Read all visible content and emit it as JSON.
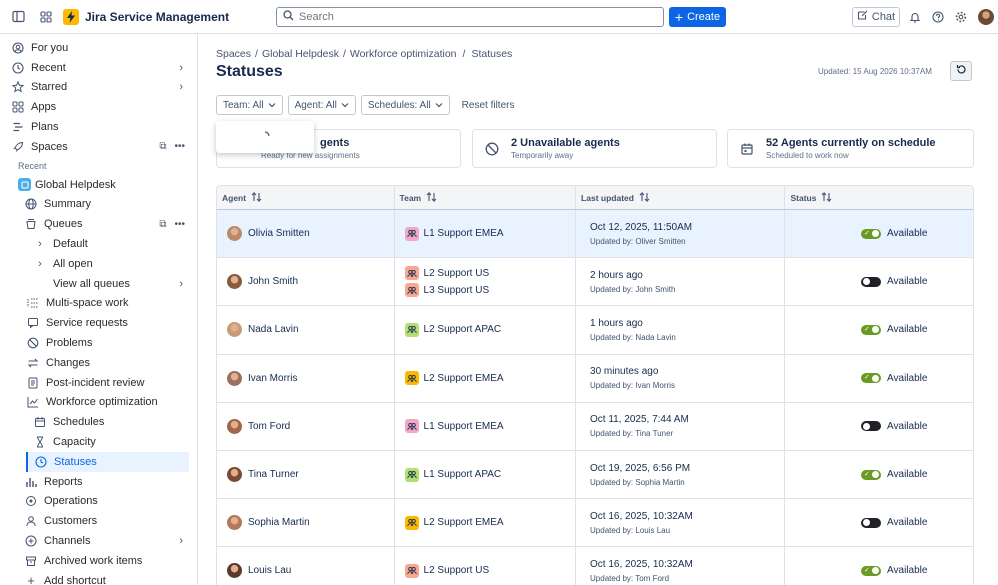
{
  "app": {
    "name": "Jira Service Management"
  },
  "search": {
    "placeholder": "Search"
  },
  "topbar": {
    "create_label": "Create",
    "chat_label": "Chat"
  },
  "sidebar": {
    "for_you": "For you",
    "recent": "Recent",
    "starred": "Starred",
    "apps": "Apps",
    "plans": "Plans",
    "spaces": "Spaces",
    "recent_heading": "Recent",
    "space_name": "Global Helpdesk",
    "summary": "Summary",
    "queues": "Queues",
    "default": "Default",
    "all_open": "All open",
    "view_all_queues": "View all queues",
    "multi_space_work": "Multi-space work",
    "service_requests": "Service requests",
    "problems": "Problems",
    "changes": "Changes",
    "post_incident_review": "Post-incident review",
    "workforce_optimization": "Workforce optimization",
    "schedules": "Schedules",
    "capacity": "Capacity",
    "statuses": "Statuses",
    "reports": "Reports",
    "operations": "Operations",
    "customers": "Customers",
    "channels": "Channels",
    "archived_work_items": "Archived work items",
    "add_shortcut": "Add shortcut"
  },
  "breadcrumb": {
    "c1": "Spaces",
    "sep1": "/",
    "c2": "Global Helpdesk",
    "sep2": "/",
    "c3": "Workforce optimization",
    "sep3": "/",
    "c4": "Statuses"
  },
  "page": {
    "title": "Statuses",
    "updated": "Updated: 15 Aug 2026 10:37AM"
  },
  "filters": {
    "team": "Team: All",
    "agent": "Agent: All",
    "schedules": "Schedules: All",
    "reset": "Reset filters"
  },
  "cards": [
    {
      "title": "gents",
      "sub": "Ready for new assignments"
    },
    {
      "title": "2 Unavailable agents",
      "sub": "Temporarily away"
    },
    {
      "title": "52 Agents currently on schedule",
      "sub": "Scheduled to work now"
    }
  ],
  "table": {
    "headers": {
      "agent": "Agent",
      "team": "Team",
      "last_updated": "Last updated",
      "status": "Status"
    },
    "rows": [
      {
        "agent": "Olivia Smitten",
        "teams": [
          "L1 Support EMEA"
        ],
        "when": "Oct 12, 2025, 11:50AM",
        "by": "Updated by: Oliver Smitten",
        "status": "Available",
        "on": true
      },
      {
        "agent": "John Smith",
        "teams": [
          "L2 Support US",
          "L3 Support US"
        ],
        "when": "2 hours ago",
        "by": "Updated by: John Smith",
        "status": "Available",
        "on": false
      },
      {
        "agent": "Nada Lavin",
        "teams": [
          "L2 Support APAC"
        ],
        "when": "1 hours ago",
        "by": "Updated by: Nada Lavin",
        "status": "Available",
        "on": true
      },
      {
        "agent": "Ivan Morris",
        "teams": [
          "L2 Support EMEA"
        ],
        "when": "30 minutes ago",
        "by": "Updated by: Ivan Morris",
        "status": "Available",
        "on": true
      },
      {
        "agent": "Tom Ford",
        "teams": [
          "L1 Support EMEA"
        ],
        "when": "Oct 11, 2025, 7:44 AM",
        "by": "Updated by: Tina Tuner",
        "status": "Available",
        "on": false
      },
      {
        "agent": "Tina Turner",
        "teams": [
          "L1 Support APAC"
        ],
        "when": "Oct 19, 2025, 6:56 PM",
        "by": "Updated by: Sophia Martin",
        "status": "Available",
        "on": true
      },
      {
        "agent": "Sophia Martin",
        "teams": [
          "L2 Support EMEA"
        ],
        "when": "Oct 16, 2025, 10:32AM",
        "by": "Updated by: Louis Lau",
        "status": "Available",
        "on": false
      },
      {
        "agent": "Louis Lau",
        "teams": [
          "L2 Support US"
        ],
        "when": "Oct 16, 2025, 10:32AM",
        "by": "Updated by: Tom Ford",
        "status": "Available",
        "on": true
      }
    ]
  },
  "colors": {
    "primary": "#0c66e4",
    "toggle_on": "#6a9a23",
    "toggle_off": "#1f2124",
    "selected_row": "#e9f2ff",
    "logo": "#fcb900"
  }
}
